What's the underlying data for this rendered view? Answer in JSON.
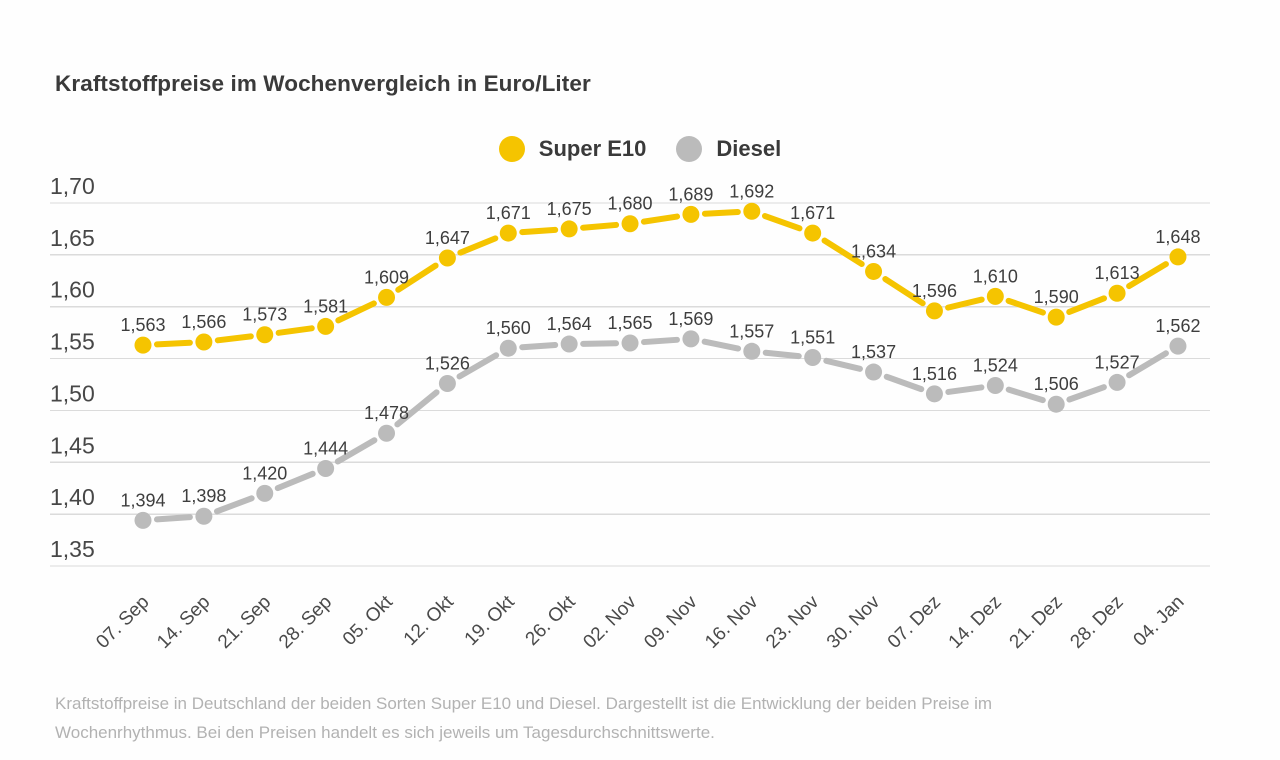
{
  "title": "Kraftstoffpreise im Wochenvergleich in Euro/Liter",
  "caption": {
    "text": "Kraftstoffpreise in Deutschland der beiden Sorten Super E10 und Diesel. Dargestellt ist die Entwicklung der beiden Preise im Wochenrhythmus. Bei den Preisen handelt es sich jeweils um Tagesdurchschnittswerte."
  },
  "chart_data": {
    "type": "line",
    "title": "Kraftstoffpreise im Wochenvergleich in Euro/Liter",
    "unit": "Euro/Liter",
    "x": [
      "07. Sep",
      "14. Sep",
      "21. Sep",
      "28. Sep",
      "05. Okt",
      "12. Okt",
      "19. Okt",
      "26. Okt",
      "02. Nov",
      "09. Nov",
      "16. Nov",
      "23. Nov",
      "30. Nov",
      "07. Dez",
      "14. Dez",
      "21. Dez",
      "28. Dez",
      "04. Jan"
    ],
    "series": [
      {
        "name": "Super E10",
        "color": "#f5c400",
        "values": [
          1.563,
          1.566,
          1.573,
          1.581,
          1.609,
          1.647,
          1.671,
          1.675,
          1.68,
          1.689,
          1.692,
          1.671,
          1.634,
          1.596,
          1.61,
          1.59,
          1.613,
          1.648
        ]
      },
      {
        "name": "Diesel",
        "color": "#bbbbbb",
        "values": [
          1.394,
          1.398,
          1.42,
          1.444,
          1.478,
          1.526,
          1.56,
          1.564,
          1.565,
          1.569,
          1.557,
          1.551,
          1.537,
          1.516,
          1.524,
          1.506,
          1.527,
          1.562
        ]
      }
    ],
    "ylim": [
      1.35,
      1.7
    ],
    "yticks": [
      1.7,
      1.65,
      1.6,
      1.55,
      1.5,
      1.45,
      1.4,
      1.35
    ],
    "decimal_separator": ",",
    "grid": true,
    "legend_position": "top-center",
    "value_labels": true,
    "line_style": "dashed-segments",
    "grid_color": "#dbdbdb"
  }
}
